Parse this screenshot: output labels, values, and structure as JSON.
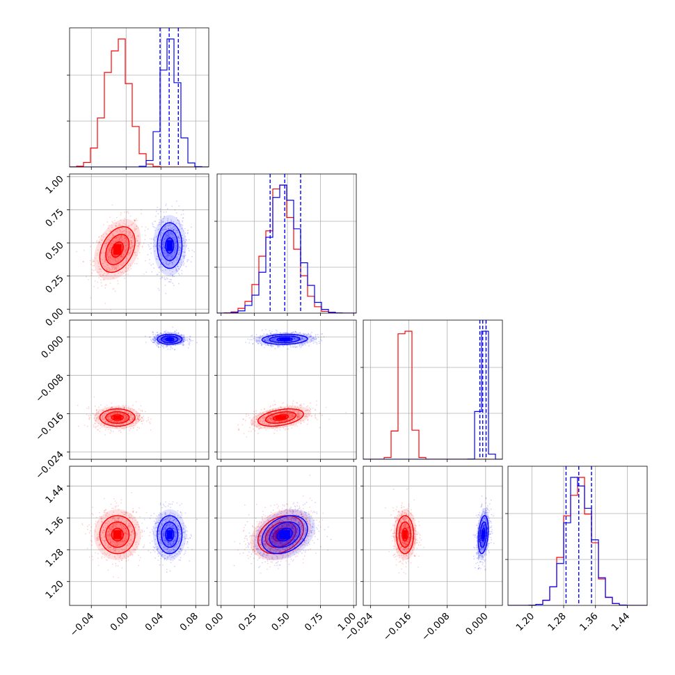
{
  "chart_data": {
    "type": "corner",
    "colors": {
      "A": "#0000ff",
      "B": "#ff0000"
    },
    "grid": true,
    "parameters": [
      {
        "range": [
          -0.065,
          0.095
        ],
        "ticks": [
          -0.04,
          0.0,
          0.04,
          0.08
        ],
        "tick_labels": [
          "−0.04",
          "0.00",
          "0.04",
          "0.08"
        ],
        "mean": {
          "A": 0.05,
          "B": -0.01
        },
        "sd": {
          "A": 0.0095,
          "B": 0.0135
        },
        "quantiles_A": [
          0.039,
          0.0495,
          0.06
        ]
      },
      {
        "range": [
          -0.03,
          1.02
        ],
        "ticks": [
          0.0,
          0.25,
          0.5,
          0.75,
          1.0
        ],
        "tick_labels": [
          "0.00",
          "0.25",
          "0.50",
          "0.75",
          "1.00"
        ],
        "mean": {
          "A": 0.48,
          "B": 0.45
        },
        "sd": {
          "A": 0.115,
          "B": 0.115
        },
        "quantiles_A": [
          0.37,
          0.48,
          0.6
        ]
      },
      {
        "range": [
          -0.0255,
          0.0035
        ],
        "ticks": [
          -0.024,
          -0.016,
          -0.008,
          0.0
        ],
        "tick_labels": [
          "−0.024",
          "−0.016",
          "−0.008",
          "0.000"
        ],
        "mean": {
          "A": -0.0005,
          "B": -0.0168
        },
        "sd": {
          "A": 0.0007,
          "B": 0.0012
        },
        "quantiles_A": [
          -0.0012,
          -0.0006,
          0.0001
        ]
      },
      {
        "range": [
          1.14,
          1.49
        ],
        "ticks": [
          1.2,
          1.28,
          1.36,
          1.44
        ],
        "tick_labels": [
          "1.20",
          "1.28",
          "1.36",
          "1.44"
        ],
        "mean": {
          "A": 1.318,
          "B": 1.318
        },
        "sd": {
          "A": 0.032,
          "B": 0.032
        },
        "quantiles_A": [
          1.286,
          1.318,
          1.35
        ]
      }
    ],
    "correlations": {
      "1-0": {
        "A": 0.0,
        "B": 0.35
      },
      "2-0": {
        "A": 0.0,
        "B": 0.0
      },
      "2-1": {
        "A": 0.1,
        "B": 0.4
      },
      "3-0": {
        "A": 0.0,
        "B": 0.0
      },
      "3-1": {
        "A": 0.3,
        "B": 0.3
      },
      "3-2": {
        "A": 0.3,
        "B": 0.0
      }
    },
    "contour_levels_sigma": [
      0.5,
      1.0,
      1.5,
      2.0
    ]
  }
}
